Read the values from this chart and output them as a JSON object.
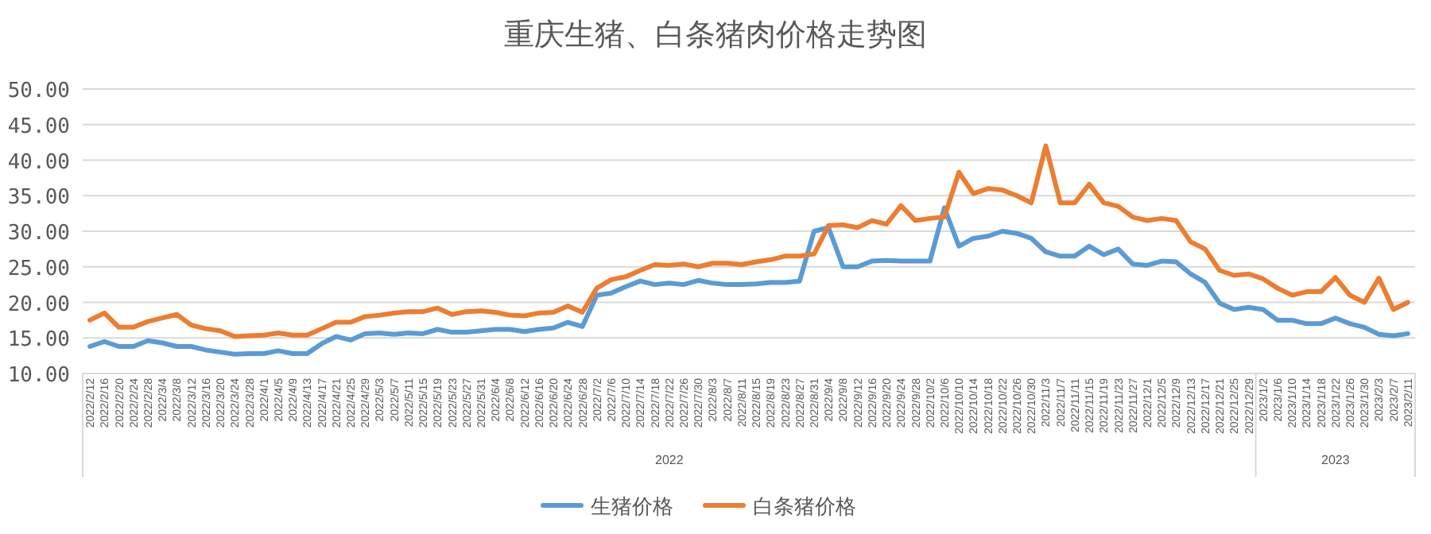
{
  "chart_data": {
    "type": "line",
    "title": "重庆生猪、白条猪肉价格走势图",
    "categories": [
      "2022/2/12",
      "2022/2/16",
      "2022/2/20",
      "2022/2/24",
      "2022/2/28",
      "2022/3/4",
      "2022/3/8",
      "2022/3/12",
      "2022/3/16",
      "2022/3/20",
      "2022/3/24",
      "2022/3/28",
      "2022/4/1",
      "2022/4/5",
      "2022/4/9",
      "2022/4/13",
      "2022/4/17",
      "2022/4/21",
      "2022/4/25",
      "2022/4/29",
      "2022/5/3",
      "2022/5/7",
      "2022/5/11",
      "2022/5/15",
      "2022/5/19",
      "2022/5/23",
      "2022/5/27",
      "2022/5/31",
      "2022/6/4",
      "2022/6/8",
      "2022/6/12",
      "2022/6/16",
      "2022/6/20",
      "2022/6/24",
      "2022/6/28",
      "2022/7/2",
      "2022/7/6",
      "2022/7/10",
      "2022/7/14",
      "2022/7/18",
      "2022/7/22",
      "2022/7/26",
      "2022/7/30",
      "2022/8/3",
      "2022/8/7",
      "2022/8/11",
      "2022/8/15",
      "2022/8/19",
      "2022/8/23",
      "2022/8/27",
      "2022/8/31",
      "2022/9/4",
      "2022/9/8",
      "2022/9/12",
      "2022/9/16",
      "2022/9/20",
      "2022/9/24",
      "2022/9/28",
      "2022/10/2",
      "2022/10/6",
      "2022/10/10",
      "2022/10/14",
      "2022/10/18",
      "2022/10/22",
      "2022/10/26",
      "2022/10/30",
      "2022/11/3",
      "2022/11/7",
      "2022/11/11",
      "2022/11/15",
      "2022/11/19",
      "2022/11/23",
      "2022/11/27",
      "2022/12/1",
      "2022/12/5",
      "2022/12/9",
      "2022/12/13",
      "2022/12/17",
      "2022/12/21",
      "2022/12/25",
      "2022/12/29",
      "2023/1/2",
      "2023/1/6",
      "2023/1/10",
      "2023/1/14",
      "2023/1/18",
      "2023/1/22",
      "2023/1/26",
      "2023/1/30",
      "2023/2/3",
      "2023/2/7",
      "2023/2/11"
    ],
    "series": [
      {
        "name": "生猪价格",
        "color": "#5b9bd5",
        "values": [
          13.8,
          14.5,
          13.8,
          13.8,
          14.6,
          14.3,
          13.8,
          13.8,
          13.3,
          13.0,
          12.7,
          12.8,
          12.8,
          13.2,
          12.8,
          12.8,
          14.2,
          15.2,
          14.7,
          15.6,
          15.7,
          15.5,
          15.7,
          15.6,
          16.2,
          15.8,
          15.8,
          16.0,
          16.2,
          16.2,
          15.9,
          16.2,
          16.4,
          17.2,
          16.6,
          21.0,
          21.3,
          22.2,
          23.0,
          22.5,
          22.7,
          22.5,
          23.1,
          22.7,
          22.5,
          22.5,
          22.6,
          22.8,
          22.8,
          23.0,
          30.0,
          30.5,
          25.0,
          25.0,
          25.8,
          25.9,
          25.8,
          25.8,
          25.8,
          33.3,
          27.9,
          29.0,
          29.3,
          30.0,
          29.7,
          29.0,
          27.1,
          26.5,
          26.5,
          27.9,
          26.7,
          27.5,
          25.4,
          25.2,
          25.8,
          25.7,
          24.0,
          22.8,
          19.9,
          19.0,
          19.3,
          19.0,
          17.5,
          17.5,
          17.0,
          17.0,
          17.8,
          17.0,
          16.5,
          15.5,
          15.3,
          15.6
        ]
      },
      {
        "name": "白条猪价格",
        "color": "#ed7d31",
        "values": [
          17.5,
          18.5,
          16.5,
          16.5,
          17.3,
          17.8,
          18.3,
          16.8,
          16.3,
          16.0,
          15.2,
          15.3,
          15.4,
          15.7,
          15.4,
          15.4,
          16.3,
          17.2,
          17.2,
          18.0,
          18.2,
          18.5,
          18.7,
          18.7,
          19.2,
          18.3,
          18.7,
          18.8,
          18.6,
          18.2,
          18.1,
          18.5,
          18.6,
          19.5,
          18.6,
          22.0,
          23.2,
          23.6,
          24.5,
          25.3,
          25.2,
          25.4,
          25.0,
          25.5,
          25.5,
          25.3,
          25.7,
          26.0,
          26.5,
          26.5,
          26.8,
          30.8,
          30.9,
          30.5,
          31.5,
          31.0,
          33.6,
          31.5,
          31.8,
          32.0,
          38.3,
          35.3,
          36.0,
          35.8,
          35.0,
          34.0,
          42.0,
          34.0,
          34.0,
          36.6,
          34.0,
          33.5,
          32.0,
          31.5,
          31.8,
          31.5,
          28.5,
          27.5,
          24.5,
          23.8,
          24.0,
          23.3,
          22.0,
          21.0,
          21.5,
          21.5,
          23.5,
          21.0,
          20.0,
          23.4,
          19.0,
          20.0
        ]
      }
    ],
    "ylim": [
      10,
      50
    ],
    "yticks": [
      {
        "value": 10,
        "label": "10.00"
      },
      {
        "value": 15,
        "label": "15.00"
      },
      {
        "value": 20,
        "label": "20.00"
      },
      {
        "value": 25,
        "label": "25.00"
      },
      {
        "value": 30,
        "label": "30.00"
      },
      {
        "value": 35,
        "label": "35.00"
      },
      {
        "value": 40,
        "label": "40.00"
      },
      {
        "value": 45,
        "label": "45.00"
      },
      {
        "value": 50,
        "label": "50.00"
      }
    ],
    "grid": "y",
    "legend": "bottom",
    "marker": "none",
    "line_style": "solid",
    "annotations": [
      "2022",
      "2023"
    ]
  }
}
